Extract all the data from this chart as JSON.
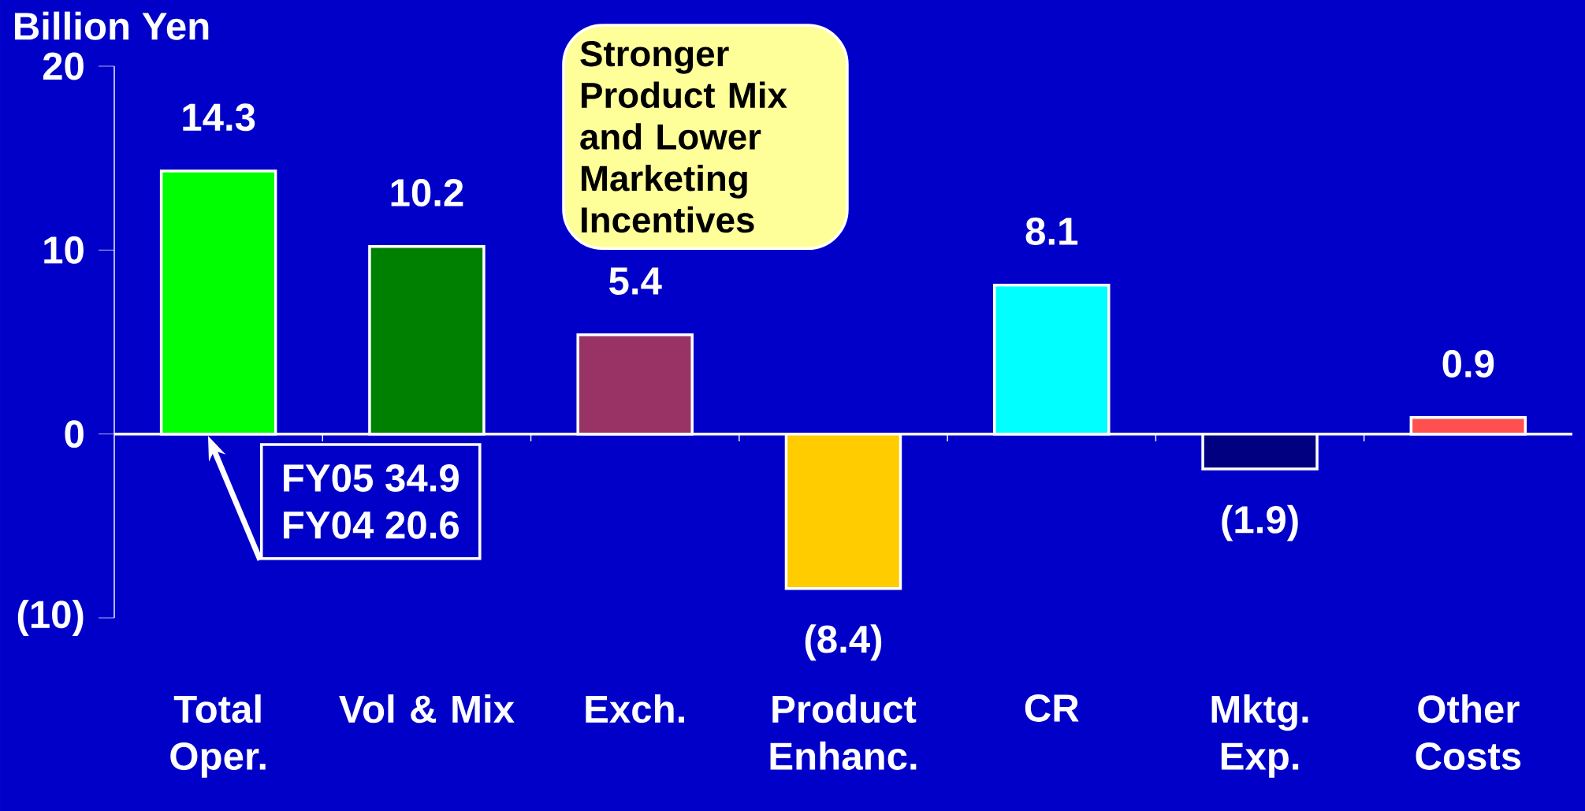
{
  "chart_data": {
    "type": "bar",
    "ylabel": "Billion Yen",
    "categories": [
      "Total Oper.",
      "Vol & Mix",
      "Exch.",
      "Product Enhanc.",
      "CR",
      "Mktg. Exp.",
      "Other Costs"
    ],
    "values": [
      14.3,
      10.2,
      5.4,
      -8.4,
      8.1,
      -1.9,
      0.9
    ],
    "value_labels": [
      "14.3",
      "10.2",
      "5.4",
      "(8.4)",
      "8.1",
      "(1.9)",
      "0.9"
    ],
    "colors": [
      "#00ff00",
      "#008000",
      "#993366",
      "#ffcc00",
      "#00ffff",
      "#000080",
      "#ff5050"
    ],
    "ylim": [
      -10,
      20
    ],
    "yticks": [
      {
        "value": -10,
        "label": "(10)"
      },
      0,
      10,
      20
    ],
    "annotations": [
      "Stronger Product Mix and Lower Marketing Incentives",
      "FY05 34.9",
      "FY04 20.6"
    ]
  }
}
